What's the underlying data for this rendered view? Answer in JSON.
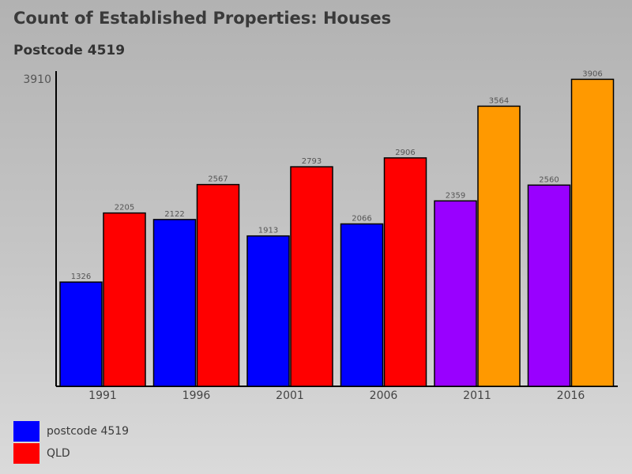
{
  "chart_data": {
    "type": "bar",
    "title": "Count of Established Properties: Houses",
    "subtitle": "Postcode 4519",
    "y_max_label": "3910",
    "ylim": [
      0,
      3910
    ],
    "categories": [
      "1991",
      "1996",
      "2001",
      "2006",
      "2011",
      "2016"
    ],
    "series": [
      {
        "name": "postcode 4519",
        "values": [
          1326,
          2122,
          1913,
          2066,
          2359,
          2560
        ],
        "colors": [
          "#0000ff",
          "#0000ff",
          "#0000ff",
          "#0000ff",
          "#9900ff",
          "#9900ff"
        ]
      },
      {
        "name": "QLD",
        "values": [
          2205,
          2567,
          2793,
          2906,
          3564,
          3906
        ],
        "colors": [
          "#ff0000",
          "#ff0000",
          "#ff0000",
          "#ff0000",
          "#ff9900",
          "#ff9900"
        ]
      }
    ],
    "legend": [
      {
        "label": "postcode 4519",
        "color": "#0000ff"
      },
      {
        "label": "QLD",
        "color": "#ff0000"
      }
    ]
  }
}
